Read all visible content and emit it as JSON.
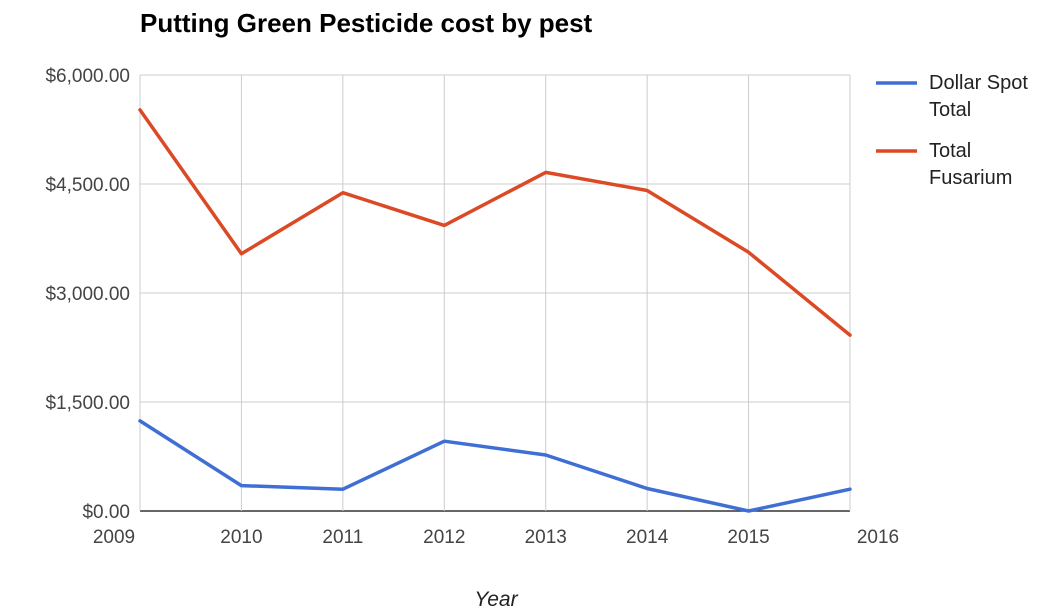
{
  "chart_data": {
    "type": "line",
    "title": "Putting Green Pesticide cost by pest",
    "xlabel": "Year",
    "ylabel": "",
    "x": [
      "2009",
      "2010",
      "2011",
      "2012",
      "2013",
      "2014",
      "2015",
      "2016"
    ],
    "ylim": [
      0,
      6000
    ],
    "yticks": [
      0,
      1500,
      3000,
      4500,
      6000
    ],
    "ytick_labels": [
      "$0.00",
      "$1,500.00",
      "$3,000.00",
      "$4,500.00",
      "$6,000.00"
    ],
    "grid": true,
    "legend_position": "right",
    "series": [
      {
        "name": "Dollar Spot Total",
        "legend_lines": [
          "Dollar Spot",
          "Total"
        ],
        "color": "#3f6fd4",
        "values": [
          1240,
          350,
          300,
          960,
          770,
          310,
          0,
          300
        ]
      },
      {
        "name": "Total Fusarium",
        "legend_lines": [
          "Total",
          "Fusarium"
        ],
        "color": "#db4a25",
        "values": [
          5520,
          3540,
          4380,
          3930,
          4660,
          4410,
          3560,
          2420
        ]
      }
    ]
  }
}
